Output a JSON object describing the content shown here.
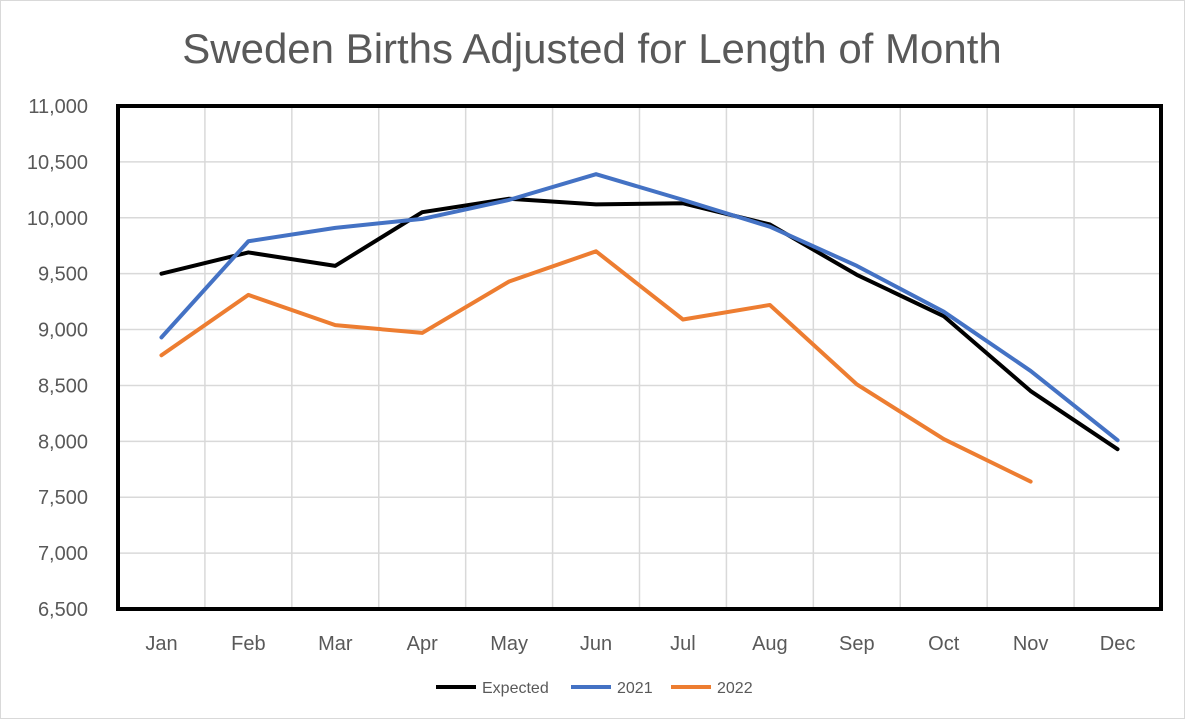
{
  "chart_data": {
    "type": "line",
    "title": "Sweden Births Adjusted for Length of Month",
    "xlabel": "",
    "ylabel": "",
    "categories": [
      "Jan",
      "Feb",
      "Mar",
      "Apr",
      "May",
      "Jun",
      "Jul",
      "Aug",
      "Sep",
      "Oct",
      "Nov",
      "Dec"
    ],
    "ylim": [
      6500,
      11000
    ],
    "yticks": [
      6500,
      7000,
      7500,
      8000,
      8500,
      9000,
      9500,
      10000,
      10500,
      11000
    ],
    "ytick_labels": [
      "6,500",
      "7,000",
      "7,500",
      "8,000",
      "8,500",
      "9,000",
      "9,500",
      "10,000",
      "10,500",
      "11,000"
    ],
    "grid": true,
    "legend_position": "bottom",
    "series": [
      {
        "name": "Expected",
        "color": "#000000",
        "values": [
          9500,
          9690,
          9570,
          10050,
          10170,
          10120,
          10130,
          9940,
          9490,
          9120,
          8450,
          7930
        ]
      },
      {
        "name": "2021",
        "color": "#4472c4",
        "values": [
          8930,
          9790,
          9910,
          9990,
          10160,
          10390,
          10160,
          9920,
          9570,
          9160,
          8630,
          8010
        ]
      },
      {
        "name": "2022",
        "color": "#ed7d31",
        "values": [
          8770,
          9310,
          9040,
          8970,
          9430,
          9700,
          9090,
          9220,
          8510,
          8020,
          7640,
          null
        ]
      }
    ]
  }
}
